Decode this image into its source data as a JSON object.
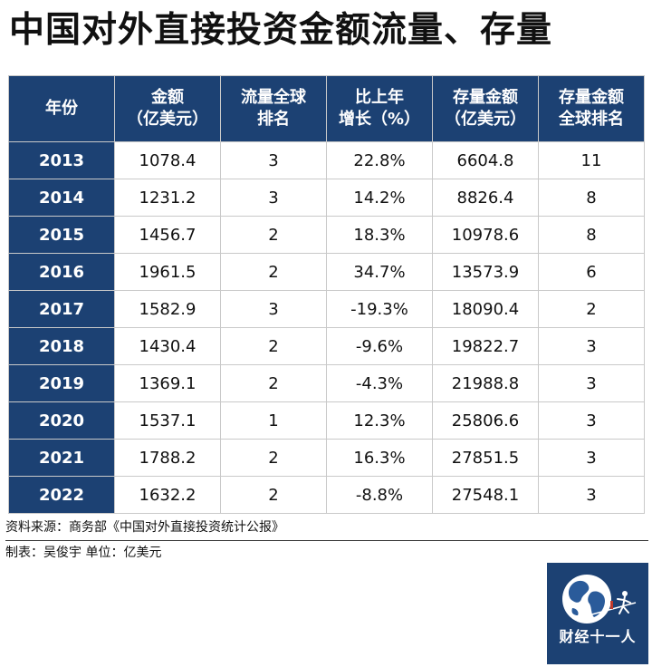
{
  "title": "中国对外直接投资金额流量、存量",
  "table": {
    "headers": [
      [
        "年份"
      ],
      [
        "金额",
        "（亿美元）"
      ],
      [
        "流量全球",
        "排名"
      ],
      [
        "比上年",
        "增长（%）"
      ],
      [
        "存量金额",
        "（亿美元）"
      ],
      [
        "存量金额",
        "全球排名"
      ]
    ],
    "rows": [
      [
        "2013",
        "1078.4",
        "3",
        "22.8%",
        "6604.8",
        "11"
      ],
      [
        "2014",
        "1231.2",
        "3",
        "14.2%",
        "8826.4",
        "8"
      ],
      [
        "2015",
        "1456.7",
        "2",
        "18.3%",
        "10978.6",
        "8"
      ],
      [
        "2016",
        "1961.5",
        "2",
        "34.7%",
        "13573.9",
        "6"
      ],
      [
        "2017",
        "1582.9",
        "3",
        "-19.3%",
        "18090.4",
        "2"
      ],
      [
        "2018",
        "1430.4",
        "2",
        "-9.6%",
        "19822.7",
        "3"
      ],
      [
        "2019",
        "1369.1",
        "2",
        "-4.3%",
        "21988.8",
        "3"
      ],
      [
        "2020",
        "1537.1",
        "1",
        "12.3%",
        "25806.6",
        "3"
      ],
      [
        "2021",
        "1788.2",
        "2",
        "16.3%",
        "27851.5",
        "3"
      ],
      [
        "2022",
        "1632.2",
        "2",
        "-8.8%",
        "27548.1",
        "3"
      ]
    ]
  },
  "footer": {
    "source": "资料来源：商务部《中国对外直接投资统计公报》",
    "maker": "制表：吴俊宇    单位：亿美元"
  },
  "logo": {
    "text": "财经十一人",
    "icon": "globe-and-figure-icon"
  },
  "colors": {
    "header_bg": "#1c4173",
    "header_text": "#ffffff",
    "grid_line": "#c9c9c9"
  }
}
